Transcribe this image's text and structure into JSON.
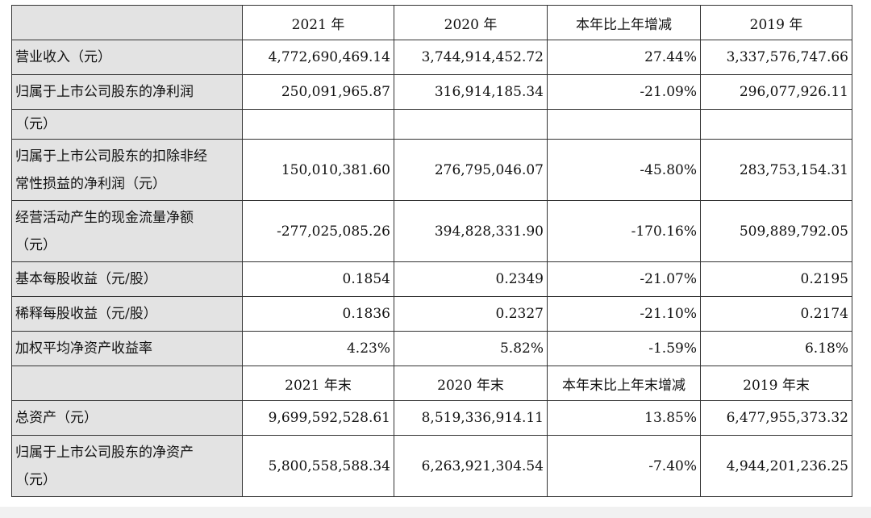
{
  "header1": [
    "2021 年",
    "2020 年",
    "本年比上年增减",
    "2019 年"
  ],
  "rows1": [
    {
      "label": "营业收入（元）",
      "v2021": "4,772,690,469.14",
      "v2020": "3,744,914,452.72",
      "change": "27.44%",
      "v2019": "3,337,576,747.66"
    },
    {
      "label": "归属于上市公司股东的净利润",
      "v2021": "250,091,965.87",
      "v2020": "316,914,185.34",
      "change": "-21.09%",
      "v2019": "296,077,926.11"
    },
    {
      "label": "（元）",
      "v2021": "",
      "v2020": "",
      "change": "",
      "v2019": ""
    },
    {
      "label_line1": "归属于上市公司股东的扣除非经",
      "label_line2": "常性损益的净利润（元）",
      "v2021": "150,010,381.60",
      "v2020": "276,795,046.07",
      "change": "-45.80%",
      "v2019": "283,753,154.31"
    },
    {
      "label_line1": "经营活动产生的现金流量净额",
      "label_line2": "（元）",
      "v2021": "-277,025,085.26",
      "v2020": "394,828,331.90",
      "change": "-170.16%",
      "v2019": "509,889,792.05"
    },
    {
      "label": "基本每股收益（元/股）",
      "v2021": "0.1854",
      "v2020": "0.2349",
      "change": "-21.07%",
      "v2019": "0.2195"
    },
    {
      "label": "稀释每股收益（元/股）",
      "v2021": "0.1836",
      "v2020": "0.2327",
      "change": "-21.10%",
      "v2019": "0.2174"
    },
    {
      "label": "加权平均净资产收益率",
      "v2021": "4.23%",
      "v2020": "5.82%",
      "change": "-1.59%",
      "v2019": "6.18%"
    }
  ],
  "header2": [
    "2021 年末",
    "2020 年末",
    "本年末比上年末增减",
    "2019 年末"
  ],
  "rows2": [
    {
      "label": "总资产（元）",
      "v2021": "9,699,592,528.61",
      "v2020": "8,519,336,914.11",
      "change": "13.85%",
      "v2019": "6,477,955,373.32"
    },
    {
      "label_line1": "归属于上市公司股东的净资产",
      "label_line2": "（元）",
      "v2021": "5,800,558,588.34",
      "v2020": "6,263,921,304.54",
      "change": "-7.40%",
      "v2019": "4,944,201,236.25"
    }
  ]
}
